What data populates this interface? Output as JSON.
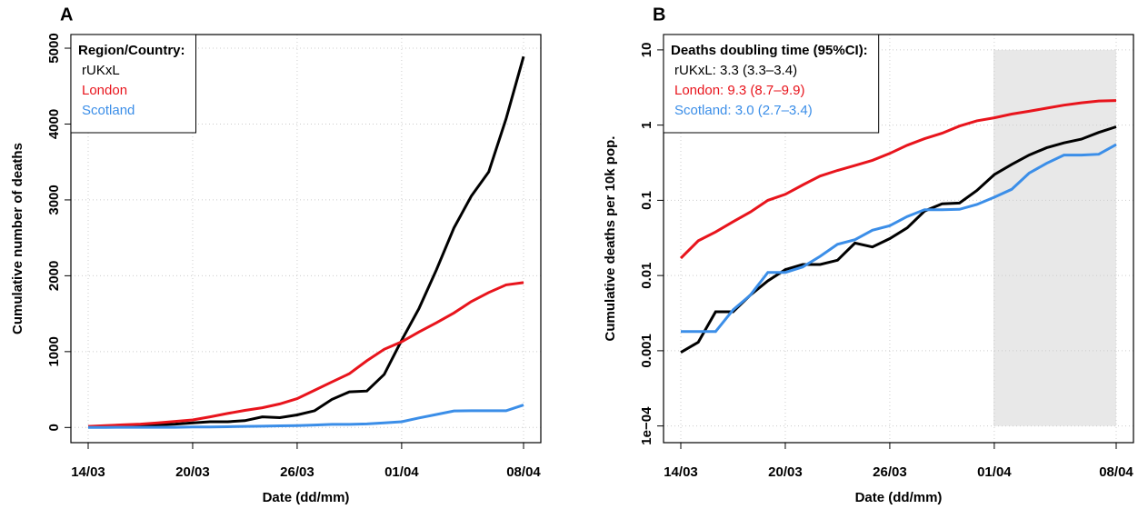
{
  "chart_data": [
    {
      "type": "line",
      "title": "A",
      "x_label": "Date (dd/mm)",
      "y_label": "Cumulative number of deaths",
      "categories": [
        "14/03",
        null,
        null,
        null,
        null,
        null,
        "20/03",
        null,
        null,
        null,
        null,
        null,
        "26/03",
        null,
        null,
        null,
        null,
        null,
        "01/04",
        null,
        null,
        null,
        null,
        null,
        null,
        "08/04"
      ],
      "ylim": [
        -200,
        5180
      ],
      "yticks": [
        0,
        1000,
        2000,
        3000,
        4000,
        5000
      ],
      "log_scale": false,
      "grid": true,
      "legend_title": "Region/Country:",
      "legend": "top-left",
      "series": [
        {
          "name": "rUKxL",
          "color": "#000000",
          "values": [
            5,
            10,
            15,
            25,
            35,
            45,
            60,
            75,
            75,
            90,
            140,
            130,
            165,
            220,
            370,
            470,
            480,
            700,
            1150,
            1570,
            2080,
            2630,
            3050,
            3370,
            4070,
            4890
          ]
        },
        {
          "name": "London",
          "color": "#e8141c",
          "values": [
            15,
            25,
            35,
            45,
            60,
            80,
            100,
            140,
            185,
            225,
            260,
            310,
            380,
            490,
            600,
            710,
            880,
            1030,
            1130,
            1260,
            1380,
            1510,
            1660,
            1780,
            1880,
            1910
          ]
        },
        {
          "name": "Scotland",
          "color": "#3b8ee8",
          "values": [
            1,
            1,
            2,
            2,
            3,
            3,
            6,
            7,
            10,
            14,
            17,
            22,
            25,
            33,
            41,
            41,
            47,
            60,
            76,
            126,
            172,
            218,
            220,
            220,
            220,
            296
          ]
        }
      ]
    },
    {
      "type": "line",
      "title": "B",
      "x_label": "Date (dd/mm)",
      "y_label": "Cumulative deaths per 10k pop.",
      "categories": [
        "14/03",
        null,
        null,
        null,
        null,
        null,
        "20/03",
        null,
        null,
        null,
        null,
        null,
        "26/03",
        null,
        null,
        null,
        null,
        null,
        "01/04",
        null,
        null,
        null,
        null,
        null,
        null,
        "08/04"
      ],
      "ylim": [
        6e-05,
        16
      ],
      "yticks": [
        {
          "value": 0.0001,
          "label": "1e−04"
        },
        0.001,
        0.01,
        0.1,
        1,
        10
      ],
      "log_scale": true,
      "grid": true,
      "legend_title": "Deaths doubling time (95%CI):",
      "legend": "top-left",
      "shaded_region": {
        "from": 17.95,
        "to": 25,
        "ymin": 0.0001,
        "ymax": 10,
        "color": "#e8e8e8"
      },
      "series": [
        {
          "name": "rUKxL: 3.3 (3.3–3.4)",
          "color": "#000000",
          "values": [
            0.00095,
            0.0013,
            0.0033,
            0.0033,
            0.0055,
            0.0085,
            0.012,
            0.014,
            0.014,
            0.016,
            0.027,
            0.024,
            0.031,
            0.043,
            0.072,
            0.09,
            0.092,
            0.135,
            0.22,
            0.3,
            0.4,
            0.5,
            0.58,
            0.65,
            0.8,
            0.95
          ]
        },
        {
          "name": "London: 9.3 (8.7–9.9)",
          "color": "#e8141c",
          "values": [
            0.017,
            0.029,
            0.038,
            0.052,
            0.07,
            0.1,
            0.12,
            0.16,
            0.21,
            0.25,
            0.29,
            0.34,
            0.42,
            0.54,
            0.66,
            0.78,
            0.97,
            1.14,
            1.25,
            1.4,
            1.53,
            1.68,
            1.84,
            1.98,
            2.09,
            2.12
          ]
        },
        {
          "name": "Scotland: 3.0 (2.7–3.4)",
          "color": "#3b8ee8",
          "values": [
            0.0018,
            0.0018,
            0.0018,
            0.0035,
            0.0055,
            0.011,
            0.011,
            0.013,
            0.018,
            0.026,
            0.03,
            0.04,
            0.046,
            0.061,
            0.075,
            0.075,
            0.076,
            0.088,
            0.11,
            0.14,
            0.23,
            0.31,
            0.4,
            0.4,
            0.41,
            0.55
          ]
        }
      ]
    }
  ]
}
